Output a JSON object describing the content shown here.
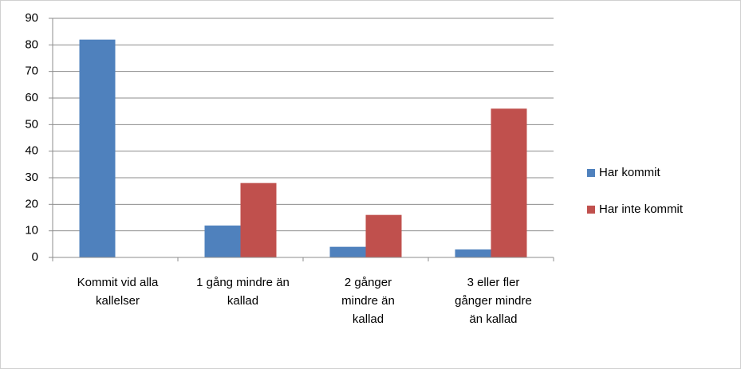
{
  "chart_data": {
    "type": "bar",
    "categories": [
      "Kommit vid alla kallelser",
      "1 gång mindre än kallad",
      "2 gånger mindre än kallad",
      "3 eller fler gånger mindre än kallad"
    ],
    "series": [
      {
        "name": "Har kommit",
        "color": "#4f81bd",
        "values": [
          82,
          12,
          4,
          3
        ]
      },
      {
        "name": "Har inte kommit",
        "color": "#c0504d",
        "values": [
          0,
          28,
          16,
          56
        ]
      }
    ],
    "ylim": [
      0,
      90
    ],
    "yticks": [
      0,
      10,
      20,
      30,
      40,
      50,
      60,
      70,
      80,
      90
    ],
    "grid": true,
    "legend": "right"
  }
}
